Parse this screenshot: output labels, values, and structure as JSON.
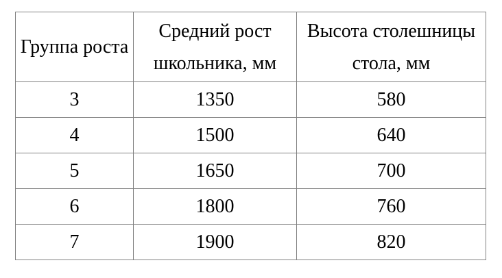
{
  "colors": {
    "border": "#808080",
    "text": "#000000",
    "background": "#ffffff"
  },
  "table": {
    "col1_header": "Группа роста",
    "col2_header_line1": "Средний рост",
    "col2_header_line2": "школьника, мм",
    "col3_header_line1": "Высота столешницы",
    "col3_header_line2": "стола, мм",
    "rows": [
      {
        "group": "3",
        "avg_height": "1350",
        "desk_height": "580"
      },
      {
        "group": "4",
        "avg_height": "1500",
        "desk_height": "640"
      },
      {
        "group": "5",
        "avg_height": "1650",
        "desk_height": "700"
      },
      {
        "group": "6",
        "avg_height": "1800",
        "desk_height": "760"
      },
      {
        "group": "7",
        "avg_height": "1900",
        "desk_height": "820"
      }
    ]
  }
}
